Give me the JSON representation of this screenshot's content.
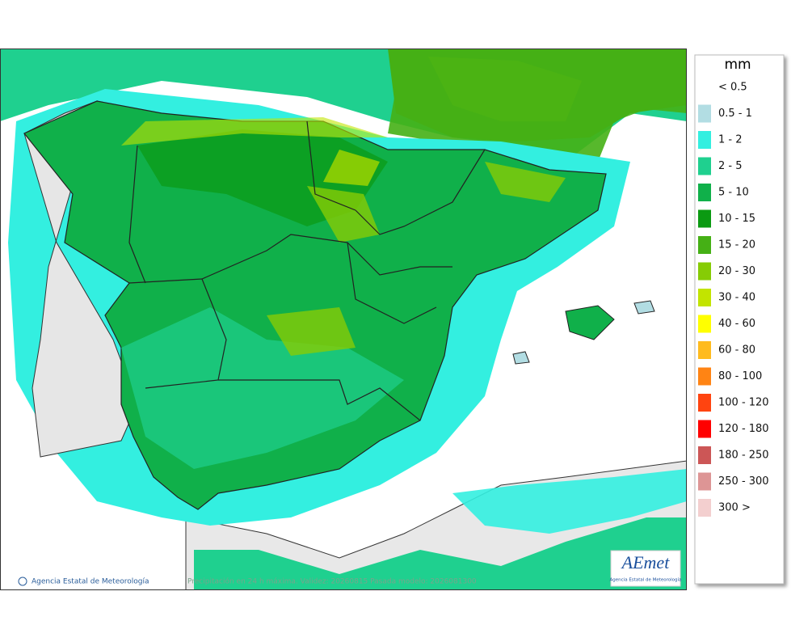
{
  "legend": {
    "title": "mm",
    "items": [
      {
        "label": "< 0.5"
      },
      {
        "label": "0.5 - 1",
        "color": "#b2dde3"
      },
      {
        "label": "1 - 2",
        "color": "#33efe0"
      },
      {
        "label": "2 - 5",
        "color": "#1fd08f"
      },
      {
        "label": "5 - 10",
        "color": "#10b04a"
      },
      {
        "label": "10 - 15",
        "color": "#0b9a12"
      },
      {
        "label": "15 - 20",
        "color": "#45b015"
      },
      {
        "label": "20 - 30",
        "color": "#86cc05"
      },
      {
        "label": "30 - 40",
        "color": "#c2e400"
      },
      {
        "label": "40 - 60",
        "color": "#ffff00"
      },
      {
        "label": "60 - 80",
        "color": "#ffbb1e"
      },
      {
        "label": "80 - 100",
        "color": "#ff8414"
      },
      {
        "label": "100 - 120",
        "color": "#ff4410"
      },
      {
        "label": "120 - 180",
        "color": "#ff0000"
      },
      {
        "label": "180 - 250",
        "color": "#cc5656"
      },
      {
        "label": "250 - 300",
        "color": "#dd9595"
      },
      {
        "label": "300 >",
        "color": "#f3cfcf"
      }
    ]
  },
  "footer": {
    "credit": "Agencia Estatal de Meteorología",
    "caption": "Precipitación en 24 h máxima. Validez: 20260815 Pasada modelo: 2026081300"
  },
  "logo": {
    "name": "AEmet",
    "subtitle": "Agencia Estatal de Meteorología"
  }
}
